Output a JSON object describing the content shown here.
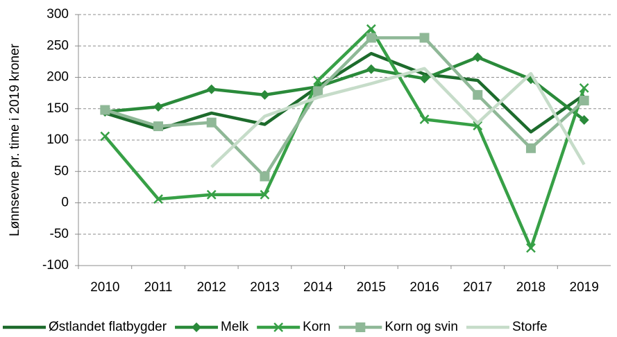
{
  "chart_data": {
    "type": "line",
    "y_label": "Lønnsevne pr. time i 2019 kroner",
    "categories": [
      "2010",
      "2011",
      "2012",
      "2013",
      "2014",
      "2015",
      "2016",
      "2017",
      "2018",
      "2019"
    ],
    "series": [
      {
        "name": "Østlandet flatbygder",
        "color": "#1d6b2c",
        "marker": "none",
        "values": [
          143,
          117,
          143,
          125,
          185,
          238,
          205,
          195,
          113,
          172
        ]
      },
      {
        "name": "Melk",
        "color": "#2a8a3a",
        "marker": "diamond",
        "values": [
          145,
          153,
          181,
          172,
          185,
          213,
          198,
          232,
          197,
          132
        ]
      },
      {
        "name": "Korn",
        "color": "#37a046",
        "marker": "x",
        "values": [
          106,
          6,
          13,
          13,
          195,
          277,
          133,
          123,
          -72,
          183
        ]
      },
      {
        "name": "Korn og svin",
        "color": "#8fb897",
        "marker": "square",
        "values": [
          148,
          122,
          128,
          42,
          178,
          263,
          263,
          172,
          87,
          163
        ]
      },
      {
        "name": "Storfe",
        "color": "#c6dcc9",
        "marker": "none",
        "values": [
          null,
          null,
          57,
          138,
          168,
          190,
          214,
          127,
          206,
          61
        ]
      }
    ],
    "ylim": [
      -100,
      300
    ],
    "yticks": [
      -100,
      -50,
      0,
      50,
      100,
      150,
      200,
      250,
      300
    ],
    "grid": true,
    "legend": "bottom"
  }
}
